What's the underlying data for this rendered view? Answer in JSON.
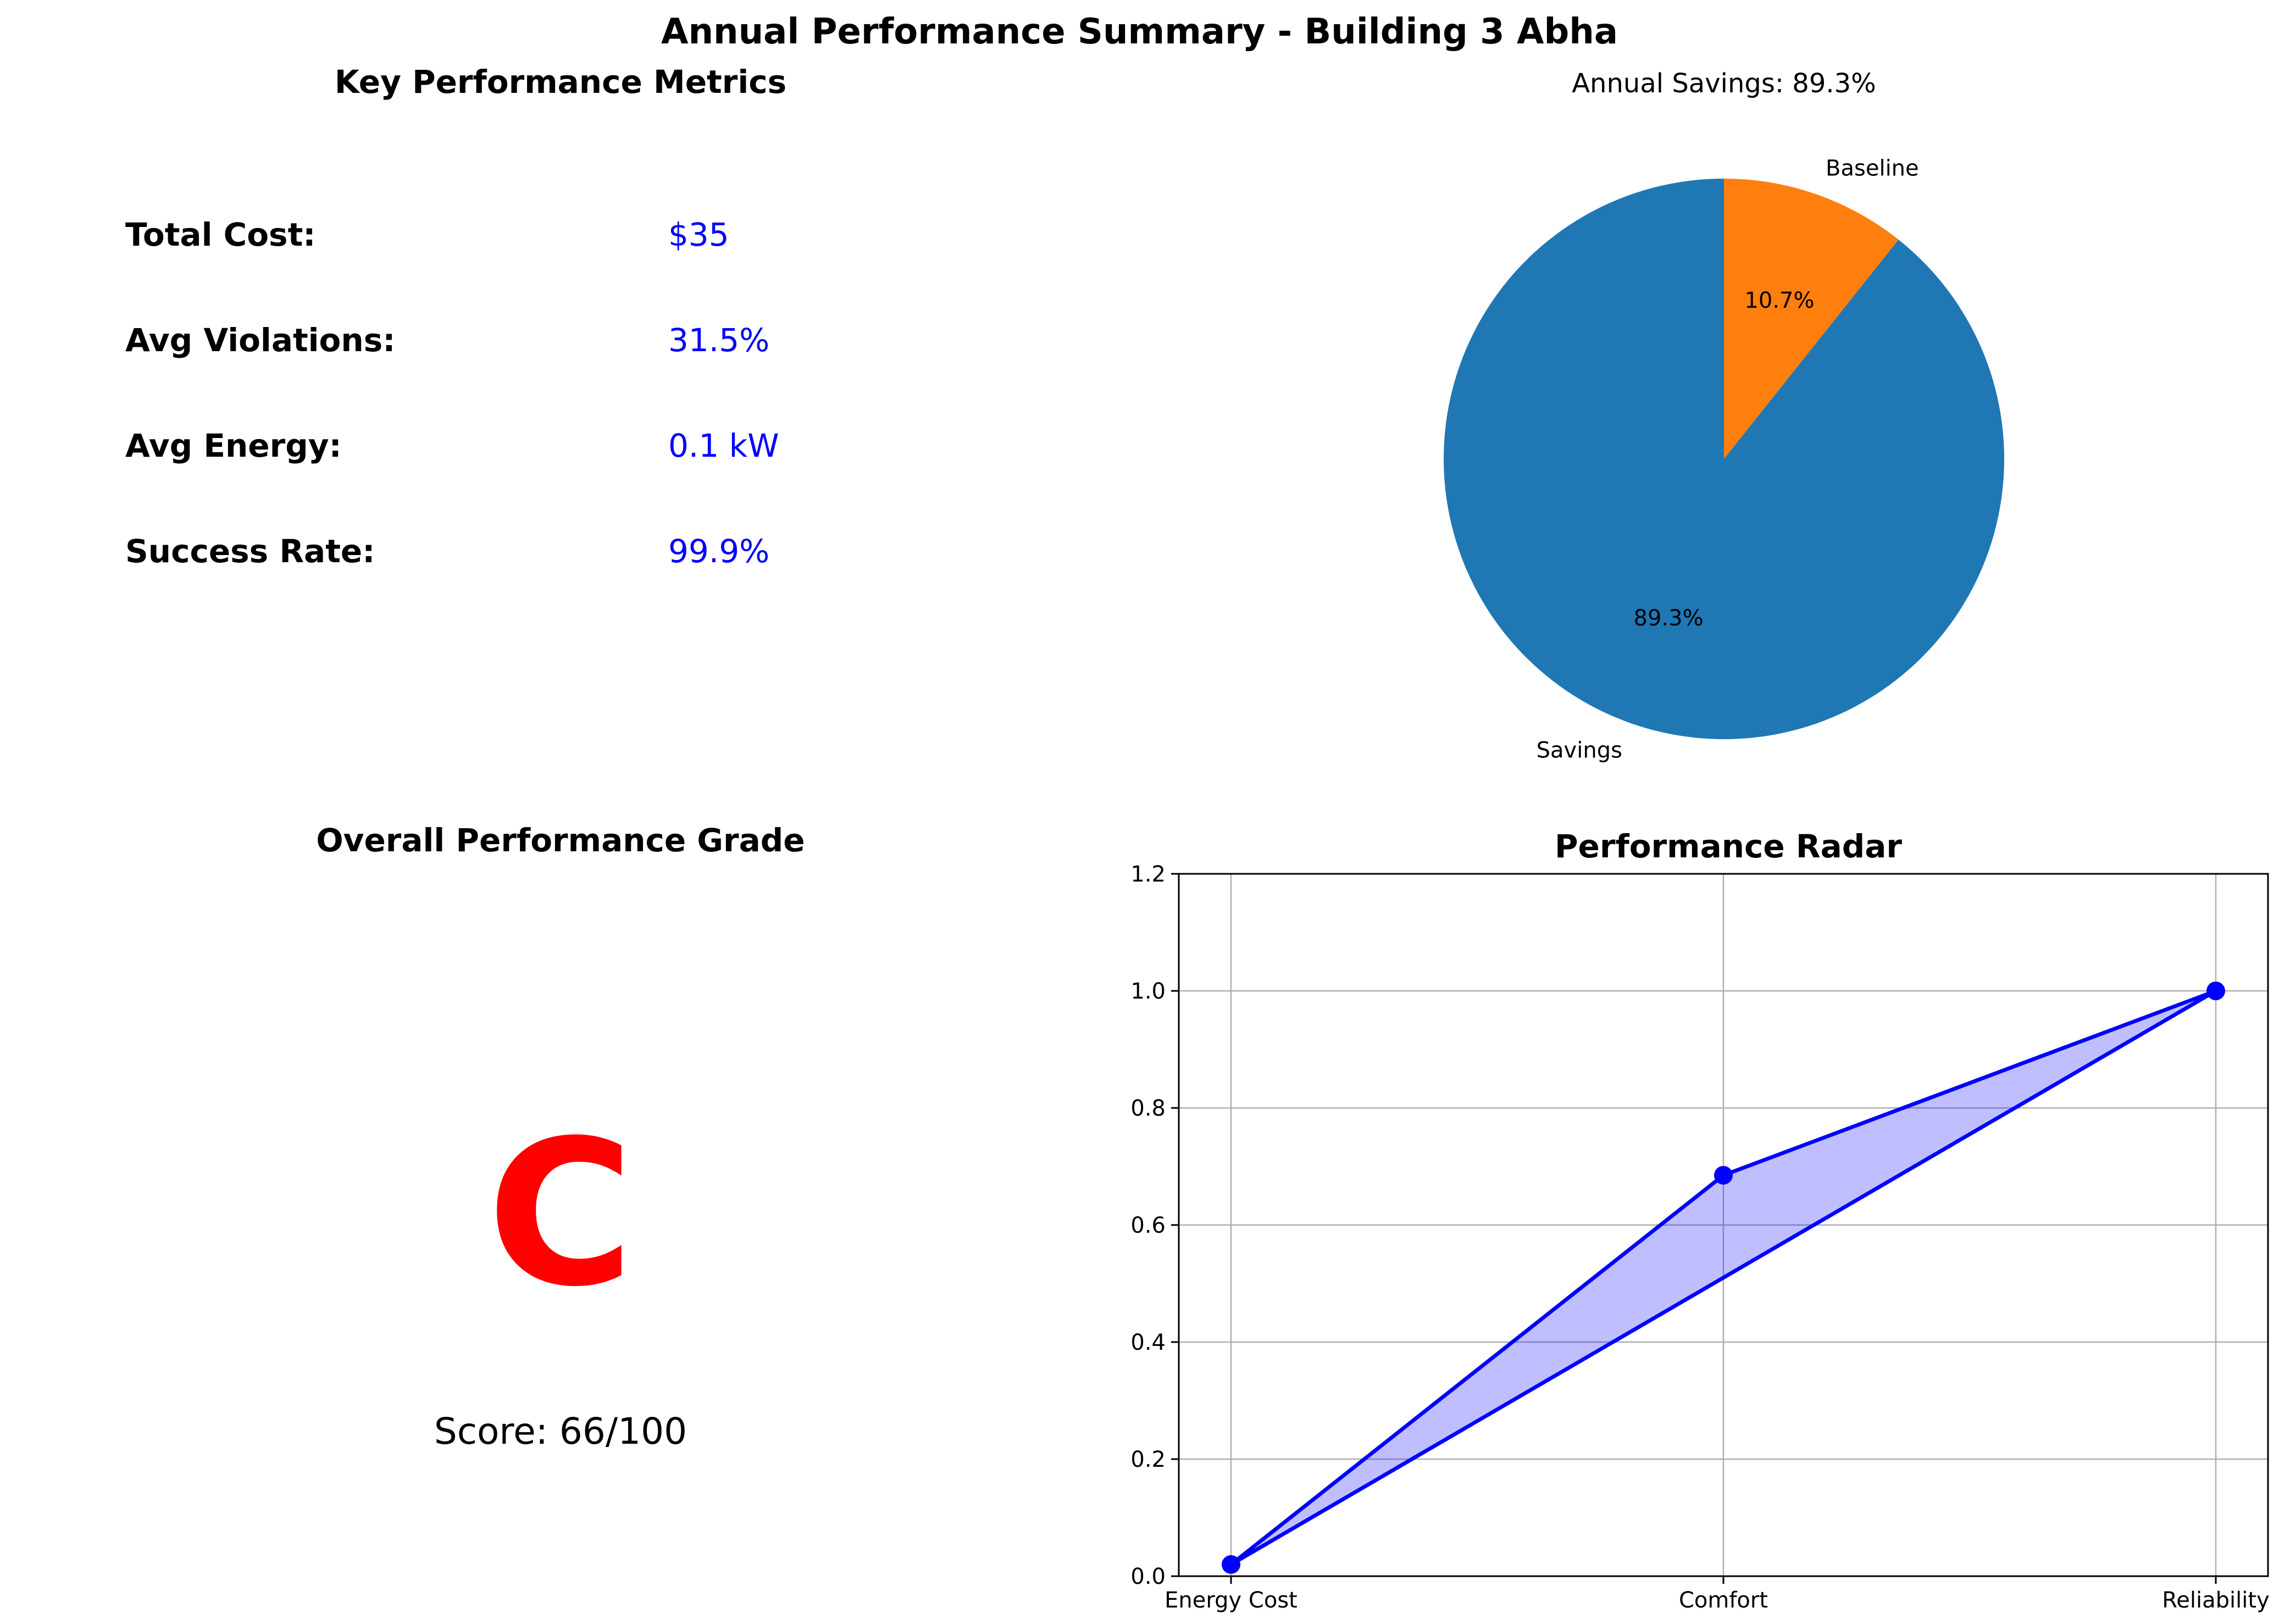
{
  "figure": {
    "title": "Annual Performance Summary - Building 3 Abha"
  },
  "metrics_panel": {
    "title": "Key Performance Metrics",
    "label_color": "#000000",
    "value_color": "#0000ff",
    "items": [
      {
        "label": "Total Cost:",
        "value": "$35"
      },
      {
        "label": "Avg Violations:",
        "value": "31.5%"
      },
      {
        "label": "Avg Energy:",
        "value": "0.1 kW"
      },
      {
        "label": "Success Rate:",
        "value": "99.9%"
      }
    ]
  },
  "grade_panel": {
    "title": "Overall Performance Grade",
    "grade": "C",
    "grade_color": "#ff0000",
    "score_text": "Score: 66/100"
  },
  "chart_data": [
    {
      "type": "pie",
      "title": "Annual Savings: 89.3%",
      "start_angle_deg": 90,
      "direction": "counterclockwise",
      "slices": [
        {
          "label": "Savings",
          "value": 89.3,
          "pct_label": "89.3%",
          "color": "#1f77b4"
        },
        {
          "label": "Baseline",
          "value": 10.7,
          "pct_label": "10.7%",
          "color": "#ff7f0e"
        }
      ]
    },
    {
      "type": "line",
      "title": "Performance Radar",
      "categories": [
        "Energy Cost",
        "Comfort",
        "Reliability"
      ],
      "series": [
        {
          "values": [
            0.02,
            0.685,
            1.0
          ],
          "color": "#0000ff",
          "fill": "#0000ff",
          "fill_alpha": 0.25,
          "closed": true
        }
      ],
      "ylim": [
        0,
        1.2
      ],
      "yticks": [
        0.0,
        0.2,
        0.4,
        0.6,
        0.8,
        1.0,
        1.2
      ],
      "grid": true
    }
  ]
}
